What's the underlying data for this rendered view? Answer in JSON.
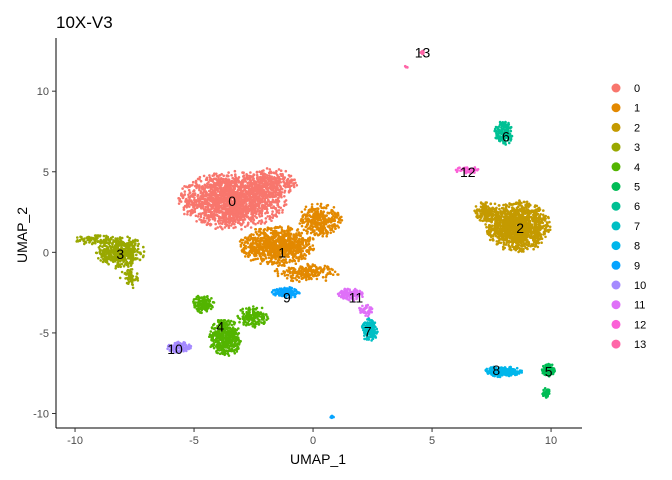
{
  "chart_data": {
    "type": "scatter",
    "title": "10X-V3",
    "xlabel": "UMAP_1",
    "ylabel": "UMAP_2",
    "xlim": [
      -10.8,
      11.3
    ],
    "ylim": [
      -10.9,
      13.3
    ],
    "x_ticks": [
      -10,
      -5,
      0,
      5,
      10
    ],
    "y_ticks": [
      -10,
      -5,
      0,
      5,
      10
    ],
    "grid": false,
    "legend_position": "right",
    "series": [
      {
        "name": "0",
        "color": "#F8766D",
        "center": [
          -3.4,
          3.1
        ],
        "label_pos": [
          -3.4,
          3.2
        ]
      },
      {
        "name": "1",
        "color": "#E38900",
        "center": [
          -1.3,
          0.2
        ],
        "label_pos": [
          -1.3,
          0.0
        ]
      },
      {
        "name": "2",
        "color": "#C49A00",
        "center": [
          8.7,
          1.6
        ],
        "label_pos": [
          8.7,
          1.5
        ]
      },
      {
        "name": "3",
        "color": "#99A800",
        "center": [
          -8.1,
          0.3
        ],
        "label_pos": [
          -8.1,
          -0.1
        ]
      },
      {
        "name": "4",
        "color": "#53B400",
        "center": [
          -3.7,
          -4.4
        ],
        "label_pos": [
          -3.9,
          -4.6
        ]
      },
      {
        "name": "5",
        "color": "#00BC56",
        "center": [
          9.8,
          -7.6
        ],
        "label_pos": [
          9.9,
          -7.4
        ]
      },
      {
        "name": "6",
        "color": "#00C094",
        "center": [
          8.1,
          7.2
        ],
        "label_pos": [
          8.1,
          7.2
        ]
      },
      {
        "name": "7",
        "color": "#00BFC4",
        "center": [
          2.4,
          -4.8
        ],
        "label_pos": [
          2.3,
          -4.9
        ]
      },
      {
        "name": "8",
        "color": "#00B6EB",
        "center": [
          7.8,
          -7.4
        ],
        "label_pos": [
          7.7,
          -7.3
        ]
      },
      {
        "name": "9",
        "color": "#06A4FF",
        "center": [
          -1.1,
          -2.6
        ],
        "label_pos": [
          -1.1,
          -2.8
        ]
      },
      {
        "name": "10",
        "color": "#A58AFF",
        "center": [
          -5.6,
          -5.9
        ],
        "label_pos": [
          -5.8,
          -6.0
        ]
      },
      {
        "name": "11",
        "color": "#DF70F8",
        "center": [
          1.7,
          -2.7
        ],
        "label_pos": [
          1.8,
          -2.8
        ]
      },
      {
        "name": "12",
        "color": "#FB61D7",
        "center": [
          6.5,
          5.0
        ],
        "label_pos": [
          6.5,
          5.0
        ]
      },
      {
        "name": "13",
        "color": "#FF66A8",
        "center": [
          4.3,
          12.0
        ],
        "label_pos": [
          4.6,
          12.4
        ]
      }
    ]
  }
}
